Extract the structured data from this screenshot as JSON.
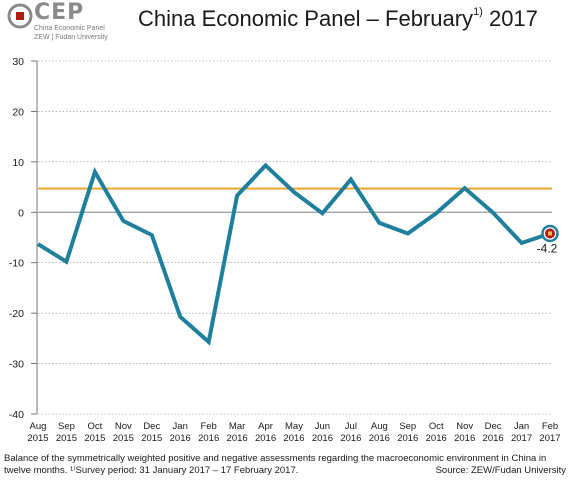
{
  "header": {
    "logo_text": "CEP",
    "logo_sub1": "China Economic Panel",
    "logo_sub2": "ZEW | Fudan University",
    "title_main": "China Economic Panel – February",
    "title_sup": "1)",
    "title_year": " 2017"
  },
  "caption": {
    "line1": "Balance of the symmetrically weighted positive and negative assessments regarding the macroeconomic environment in China in",
    "line2": "twelve months. ¹⁾Survey period: 31 January 2017 – 17 February 2017.",
    "source": "Source: ZEW/Fudan University"
  },
  "colors": {
    "series": "#1f7f9c",
    "average": "#f0a020",
    "zero": "#9a9a9a",
    "marker": "#b31b1b",
    "logo_red": "#b31b1b"
  },
  "chart_data": {
    "type": "line",
    "title": "China Economic Panel – February 2017",
    "x": [
      "Aug 2015",
      "Sep 2015",
      "Oct 2015",
      "Nov 2015",
      "Dec 2015",
      "Jan 2016",
      "Feb 2016",
      "Mar 2016",
      "Apr 2016",
      "May 2016",
      "Jun 2016",
      "Jul 2016",
      "Aug 2016",
      "Sep 2016",
      "Oct 2016",
      "Nov 2016",
      "Dec 2016",
      "Jan 2017",
      "Feb 2017"
    ],
    "x_month": [
      "Aug",
      "Sep",
      "Oct",
      "Nov",
      "Dec",
      "Jan",
      "Feb",
      "Mar",
      "Apr",
      "May",
      "Jun",
      "Jul",
      "Aug",
      "Sep",
      "Oct",
      "Nov",
      "Dec",
      "Jan",
      "Feb"
    ],
    "x_year": [
      "2015",
      "2015",
      "2015",
      "2015",
      "2015",
      "2016",
      "2016",
      "2016",
      "2016",
      "2016",
      "2016",
      "2016",
      "2016",
      "2016",
      "2016",
      "2016",
      "2016",
      "2017",
      "2017"
    ],
    "series": [
      {
        "values": [
          -6.3,
          -9.8,
          8.0,
          -1.7,
          -4.5,
          -20.7,
          -25.7,
          3.3,
          9.3,
          4.0,
          -0.2,
          6.5,
          -2.1,
          -4.2,
          -0.2,
          4.8,
          -0.1,
          -6.1,
          -4.2
        ]
      }
    ],
    "reference_line": 4.7,
    "ylim": [
      -40,
      30
    ],
    "yticks": [
      30,
      20,
      10,
      0,
      -10,
      -20,
      -30,
      -40
    ],
    "last_label": "-4.2",
    "grid": true
  }
}
